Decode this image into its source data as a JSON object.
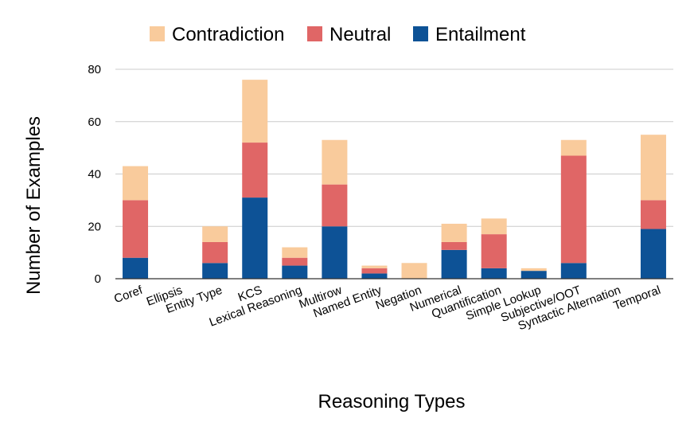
{
  "chart_data": {
    "type": "bar",
    "stacked": true,
    "title": "",
    "xlabel": "Reasoning Types",
    "ylabel": "Number of Examples",
    "ylim": [
      0,
      80
    ],
    "yticks": [
      0,
      20,
      40,
      60,
      80
    ],
    "grid": true,
    "legend_position": "top",
    "categories": [
      "Coref",
      "Ellipsis",
      "Entity Type",
      "KCS",
      "Lexical Reasoning",
      "Multirow",
      "Named Entity",
      "Negation",
      "Numerical",
      "Quantification",
      "Simple Lookup",
      "Subjective/OOT",
      "Syntactic Alternation",
      "Temporal"
    ],
    "series": [
      {
        "name": "Entailment",
        "color": "#0d5296",
        "values": [
          8,
          0,
          6,
          31,
          5,
          20,
          2,
          0,
          11,
          4,
          3,
          6,
          0,
          19
        ]
      },
      {
        "name": "Neutral",
        "color": "#e06666",
        "values": [
          22,
          0,
          8,
          21,
          3,
          16,
          2,
          0,
          3,
          13,
          0,
          41,
          0,
          11
        ]
      },
      {
        "name": "Contradiction",
        "color": "#f9cb9c",
        "values": [
          13,
          0,
          6,
          24,
          4,
          17,
          1,
          6,
          7,
          6,
          1,
          6,
          0,
          25
        ]
      }
    ],
    "legend_order": [
      "Contradiction",
      "Neutral",
      "Entailment"
    ]
  }
}
